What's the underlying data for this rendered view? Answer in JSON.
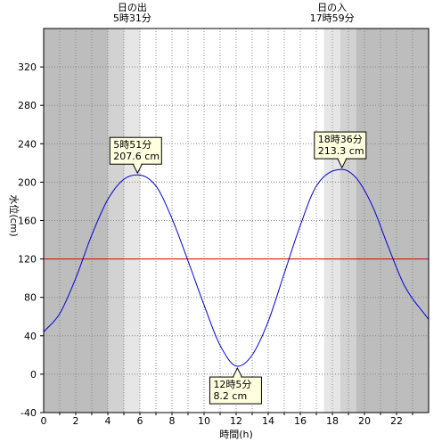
{
  "chart_data": {
    "type": "line",
    "xlabel": "時間(h)",
    "ylabel": "水位(cm)",
    "xlim": [
      0,
      24
    ],
    "ylim": [
      -40,
      360
    ],
    "x_ticks": [
      0,
      2,
      4,
      6,
      8,
      10,
      12,
      14,
      16,
      18,
      20,
      22
    ],
    "y_ticks": [
      -40,
      0,
      40,
      80,
      120,
      160,
      200,
      240,
      280,
      320
    ],
    "grid": true,
    "sunrise": {
      "label": "日の出",
      "time": "5時31分",
      "hour": 5.52
    },
    "sunset": {
      "label": "日の入",
      "time": "17時59分",
      "hour": 17.98
    },
    "reference_line": {
      "value": 120,
      "color": "#e00000"
    },
    "series": [
      {
        "color": "#0000dd",
        "x": [
          0,
          1,
          2,
          3,
          4,
          5,
          5.85,
          7,
          8,
          9,
          10,
          11,
          12.08,
          13,
          14,
          15,
          16,
          17,
          18.6,
          19.5,
          20.5,
          21.5,
          22.5,
          24
        ],
        "y": [
          44,
          63,
          100,
          145,
          182,
          203,
          207.6,
          196,
          162,
          118,
          72,
          30,
          8.2,
          20,
          55,
          105,
          155,
          196,
          213.3,
          204,
          175,
          132,
          92,
          57
        ]
      }
    ],
    "annotations": [
      {
        "label": "5時51分",
        "value": "207.6 cm",
        "x": 5.85,
        "y": 207.6
      },
      {
        "label": "12時5分",
        "value": "8.2 cm",
        "x": 12.08,
        "y": 8.2
      },
      {
        "label": "18時36分",
        "value": "213.3 cm",
        "x": 18.6,
        "y": 213.3
      }
    ]
  }
}
